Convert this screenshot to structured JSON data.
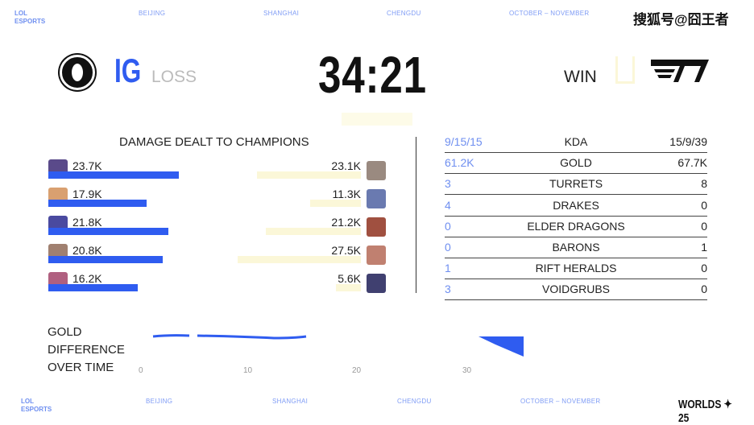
{
  "header": {
    "brand": [
      "LOL",
      "ESPORTS"
    ],
    "cities": [
      "BEIJING",
      "SHANGHAI",
      "CHENGDU",
      "OCTOBER – NOVEMBER"
    ],
    "watermark": "搜狐号@囧王者"
  },
  "score": {
    "left_team": "IG",
    "left_result": "LOSS",
    "time": "34:21",
    "right_result": "WIN",
    "right_team_logo": "T1"
  },
  "damage": {
    "title": "DAMAGE DEALT TO CHAMPIONS",
    "left": [
      "23.7K",
      "17.9K",
      "21.8K",
      "20.8K",
      "16.2K"
    ],
    "right": [
      "23.1K",
      "11.3K",
      "21.2K",
      "27.5K",
      "5.6K"
    ],
    "max_k": 27.5
  },
  "stats": [
    {
      "left": "9/15/15",
      "label": "KDA",
      "right": "15/9/39"
    },
    {
      "left": "61.2K",
      "label": "GOLD",
      "right": "67.7K"
    },
    {
      "left": "3",
      "label": "TURRETS",
      "right": "8"
    },
    {
      "left": "4",
      "label": "DRAKES",
      "right": "0"
    },
    {
      "left": "0",
      "label": "ELDER DRAGONS",
      "right": "0"
    },
    {
      "left": "0",
      "label": "BARONS",
      "right": "1"
    },
    {
      "left": "1",
      "label": "RIFT HERALDS",
      "right": "0"
    },
    {
      "left": "3",
      "label": "VOIDGRUBS",
      "right": "0"
    }
  ],
  "gold_chart": {
    "title": [
      "GOLD",
      "DIFFERENCE",
      "OVER TIME"
    ],
    "x_ticks": [
      "0",
      "10",
      "20",
      "30"
    ]
  },
  "footer": {
    "brand": [
      "LOL",
      "ESPORTS"
    ],
    "cities": [
      "BEIJING",
      "SHANGHAI",
      "CHENGDU",
      "OCTOBER – NOVEMBER"
    ],
    "event_logo": "WORLDS 25"
  },
  "colors": {
    "blue": "#2f5cf0",
    "yellow": "#fbf7d8"
  }
}
